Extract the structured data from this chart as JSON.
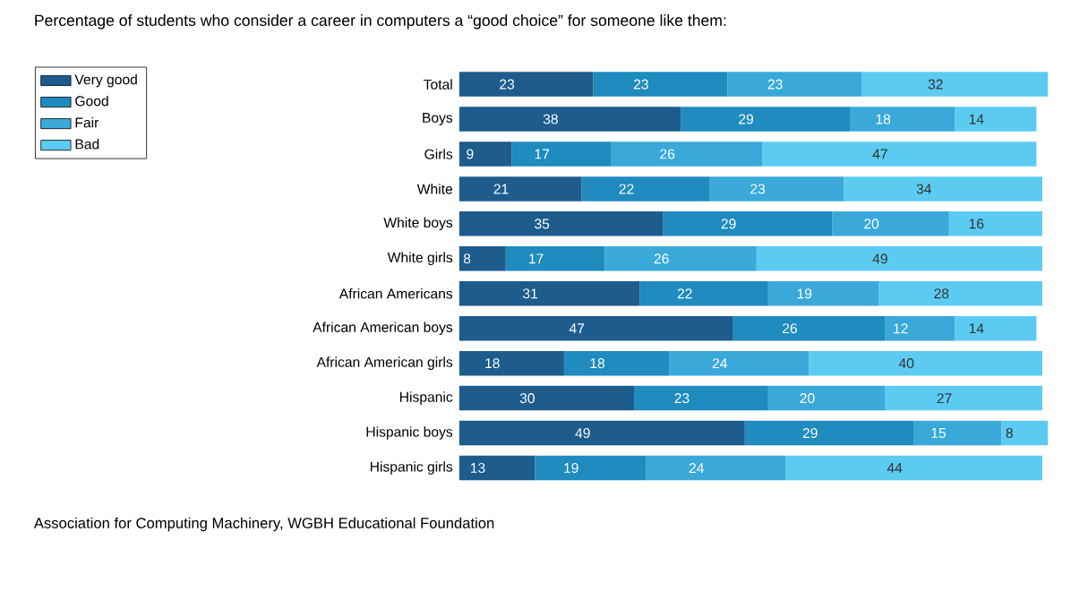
{
  "chart_data": {
    "type": "bar",
    "orientation": "horizontal",
    "stacked": true,
    "title": "Percentage of students who consider a career in computers a “good choice” for someone like them:",
    "categories": [
      "Total",
      "Boys",
      "Girls",
      "White",
      "White boys",
      "White girls",
      "African Americans",
      "African American boys",
      "African American girls",
      "Hispanic",
      "Hispanic boys",
      "Hispanic girls"
    ],
    "series": [
      {
        "name": "Very good",
        "color": "#1d5c8c",
        "values": [
          23,
          38,
          9,
          21,
          35,
          8,
          31,
          47,
          18,
          30,
          49,
          13
        ]
      },
      {
        "name": "Good",
        "color": "#1f8bbf",
        "values": [
          23,
          29,
          17,
          22,
          29,
          17,
          22,
          26,
          18,
          23,
          29,
          19
        ]
      },
      {
        "name": "Fair",
        "color": "#3aa9d9",
        "values": [
          23,
          18,
          26,
          23,
          20,
          26,
          19,
          12,
          24,
          20,
          15,
          24
        ]
      },
      {
        "name": "Bad",
        "color": "#5ccbf2",
        "values": [
          32,
          14,
          47,
          34,
          16,
          49,
          28,
          14,
          40,
          27,
          8,
          44
        ]
      }
    ],
    "data_labels": true,
    "legend": "top left",
    "annotations": [
      "Association for Computing Machinery, WGBH Educational Foundation"
    ]
  }
}
